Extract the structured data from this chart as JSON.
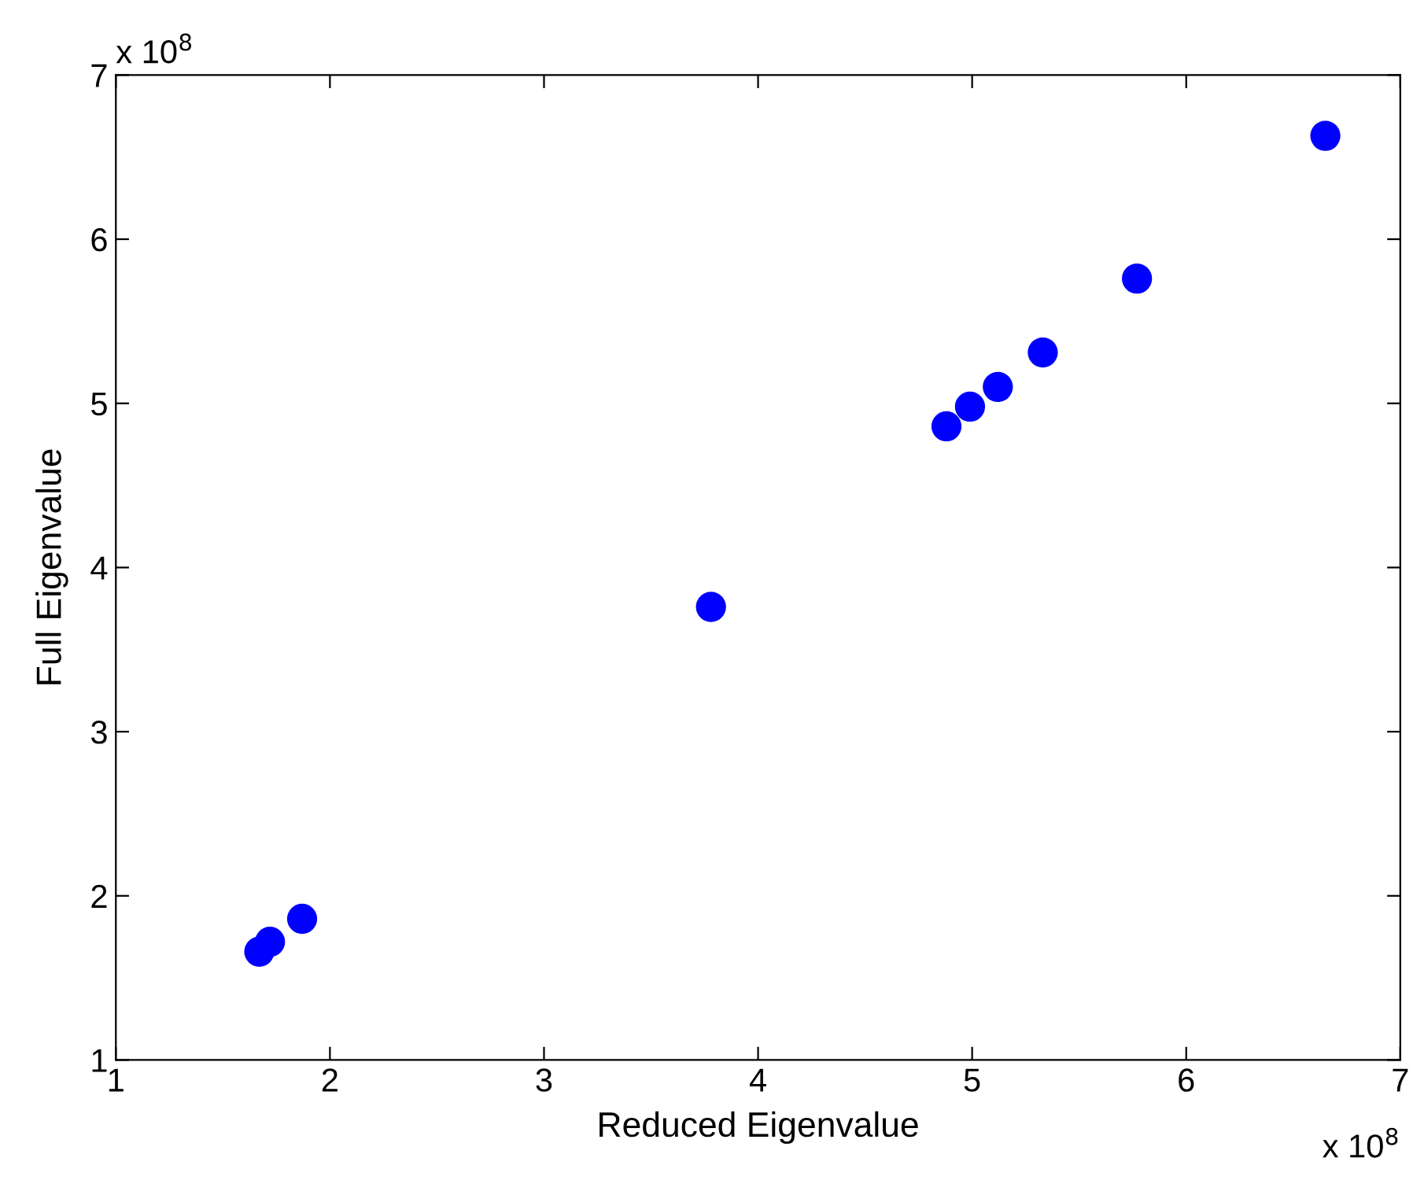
{
  "chart_data": {
    "type": "scatter",
    "xlabel": "Reduced Eigenvalue",
    "ylabel": "Full Eigenvalue",
    "x": [
      1.67,
      1.72,
      1.87,
      3.78,
      4.88,
      4.99,
      5.12,
      5.33,
      5.77,
      6.65
    ],
    "values": [
      1.66,
      1.72,
      1.86,
      3.76,
      4.86,
      4.98,
      5.1,
      5.31,
      5.76,
      6.63
    ],
    "color": "#0000ff",
    "marker": "circle",
    "grid": false,
    "xlim": [
      1,
      7
    ],
    "ylim": [
      1,
      7
    ],
    "xticks": [
      1,
      2,
      3,
      4,
      5,
      6,
      7
    ],
    "yticks": [
      1,
      2,
      3,
      4,
      5,
      6,
      7
    ],
    "annotations": [
      "x 10$^{8}$",
      "x 10$^{8}$"
    ]
  }
}
